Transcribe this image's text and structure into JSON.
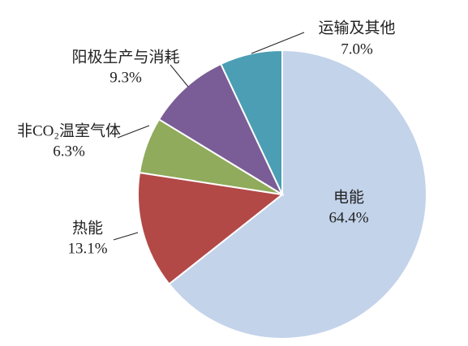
{
  "chart_data": {
    "type": "pie",
    "categories": [
      "电能",
      "热能",
      "非CO₂温室气体",
      "阳极生产与消耗",
      "运输及其他"
    ],
    "values": [
      64.4,
      13.1,
      6.3,
      9.3,
      7.0
    ],
    "value_labels": [
      "64.4%",
      "13.1%",
      "6.3%",
      "9.3%",
      "7.0%"
    ],
    "colors": [
      "#c3d3ea",
      "#b24947",
      "#8fab5b",
      "#7a5d96",
      "#4b9eb4"
    ]
  }
}
